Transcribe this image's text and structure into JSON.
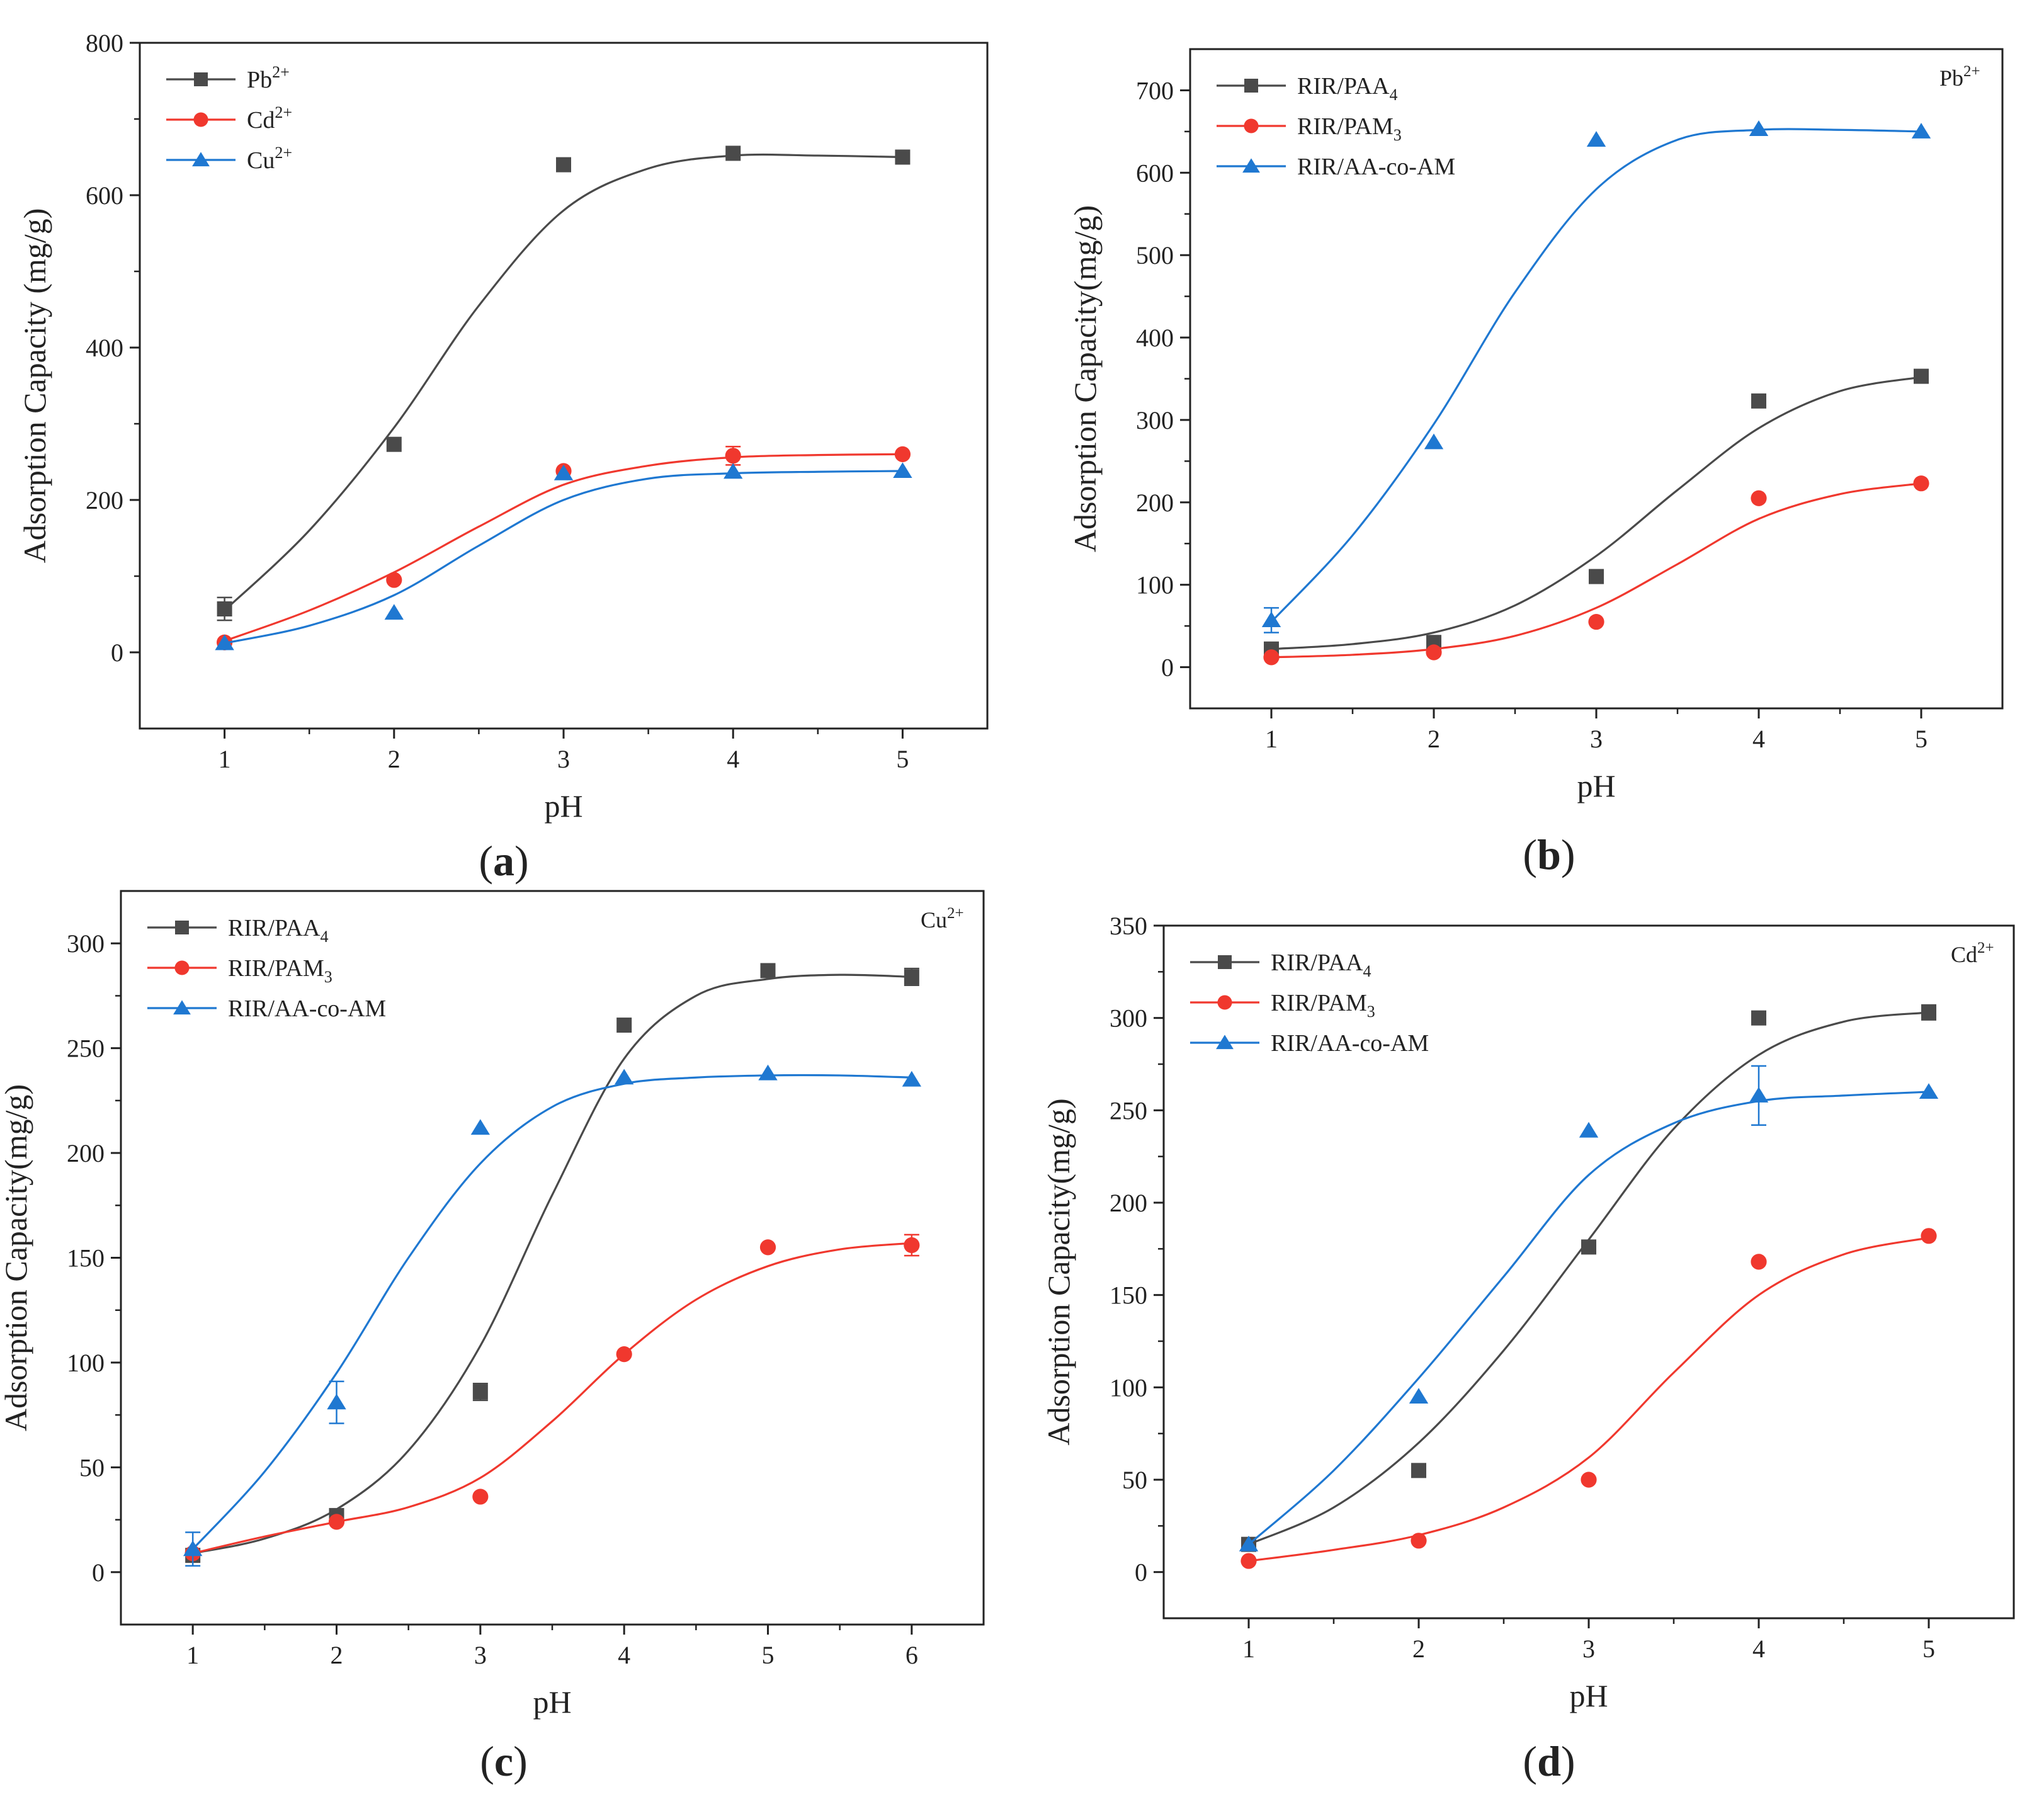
{
  "colors": {
    "black_series": "#4a4a4a",
    "red_series": "#f0382e",
    "blue_series": "#1f78d1",
    "axis": "#222222"
  },
  "chart_data": [
    {
      "id": "a",
      "type": "scatter",
      "panel_label": "a",
      "ion_label": "",
      "xlabel": "pH",
      "ylabel": "Adsorption Capacity (mg/g)",
      "xlim": [
        0.5,
        5.5
      ],
      "ylim": [
        -100,
        800
      ],
      "xticks": [
        1,
        2,
        3,
        4,
        5
      ],
      "yticks": [
        0,
        200,
        400,
        600,
        800
      ],
      "legend_position": "top-left",
      "series": [
        {
          "name": "Pb",
          "sup": "2+",
          "marker": "square",
          "color": "#4a4a4a",
          "x": [
            1,
            2,
            3,
            4,
            5
          ],
          "y": [
            57,
            273,
            640,
            655,
            650
          ],
          "errors": [
            15,
            0,
            0,
            0,
            0
          ],
          "fit_x": [
            1,
            1.5,
            2,
            2.5,
            3,
            3.5,
            4,
            4.5,
            5
          ],
          "fit_y": [
            55,
            160,
            295,
            455,
            580,
            635,
            652,
            652,
            650
          ]
        },
        {
          "name": "Cd",
          "sup": "2+",
          "marker": "circle",
          "color": "#f0382e",
          "x": [
            1,
            2,
            3,
            4,
            5
          ],
          "y": [
            13,
            95,
            238,
            258,
            260
          ],
          "errors": [
            0,
            0,
            0,
            12,
            0
          ],
          "fit_x": [
            1,
            1.5,
            2,
            2.5,
            3,
            3.5,
            4,
            4.5,
            5
          ],
          "fit_y": [
            15,
            55,
            105,
            165,
            220,
            245,
            256,
            259,
            260
          ]
        },
        {
          "name": "Cu",
          "sup": "2+",
          "marker": "triangle",
          "color": "#1f78d1",
          "x": [
            1,
            2,
            3,
            4,
            5
          ],
          "y": [
            12,
            52,
            235,
            237,
            238
          ],
          "errors": [
            0,
            0,
            0,
            0,
            0
          ],
          "fit_x": [
            1,
            1.5,
            2,
            2.5,
            3,
            3.5,
            4,
            4.5,
            5
          ],
          "fit_y": [
            12,
            35,
            75,
            140,
            200,
            228,
            235,
            237,
            238
          ]
        }
      ]
    },
    {
      "id": "b",
      "type": "scatter",
      "panel_label": "b",
      "ion_label": "Pb",
      "ion_sup": "2+",
      "xlabel": "pH",
      "ylabel": "Adsorption Capacity(mg/g)",
      "xlim": [
        0.5,
        5.5
      ],
      "ylim": [
        -50,
        750
      ],
      "xticks": [
        1,
        2,
        3,
        4,
        5
      ],
      "yticks": [
        0,
        100,
        200,
        300,
        400,
        500,
        600,
        700
      ],
      "legend_position": "top-left",
      "series": [
        {
          "name": "RIR/PAA",
          "sub": "4",
          "marker": "square",
          "color": "#4a4a4a",
          "x": [
            1,
            2,
            3,
            4,
            5
          ],
          "y": [
            22,
            30,
            110,
            323,
            353
          ],
          "errors": [
            0,
            0,
            0,
            0,
            0
          ],
          "fit_x": [
            1,
            1.5,
            2,
            2.5,
            3,
            3.5,
            4,
            4.5,
            5
          ],
          "fit_y": [
            22,
            28,
            42,
            75,
            135,
            215,
            290,
            335,
            352
          ]
        },
        {
          "name": "RIR/PAM",
          "sub": "3",
          "marker": "circle",
          "color": "#f0382e",
          "x": [
            1,
            2,
            3,
            4,
            5
          ],
          "y": [
            12,
            18,
            55,
            205,
            223
          ],
          "errors": [
            0,
            0,
            0,
            0,
            0
          ],
          "fit_x": [
            1,
            1.5,
            2,
            2.5,
            3,
            3.5,
            4,
            4.5,
            5
          ],
          "fit_y": [
            12,
            15,
            22,
            38,
            72,
            125,
            180,
            210,
            223
          ]
        },
        {
          "name": "RIR/AA-co-AM",
          "sub": "",
          "marker": "triangle",
          "color": "#1f78d1",
          "x": [
            1,
            2,
            3,
            4,
            5
          ],
          "y": [
            57,
            273,
            640,
            653,
            650
          ],
          "errors": [
            15,
            0,
            0,
            0,
            0
          ],
          "fit_x": [
            1,
            1.5,
            2,
            2.5,
            3,
            3.5,
            4,
            4.5,
            5
          ],
          "fit_y": [
            55,
            160,
            295,
            455,
            580,
            640,
            652,
            652,
            650
          ]
        }
      ]
    },
    {
      "id": "c",
      "type": "scatter",
      "panel_label": "c",
      "ion_label": "Cu",
      "ion_sup": "2+",
      "xlabel": "pH",
      "ylabel": "Adsorption Capacity(mg/g)",
      "xlim": [
        0.5,
        6.5
      ],
      "ylim": [
        -25,
        325
      ],
      "xticks": [
        1,
        2,
        3,
        4,
        5,
        6
      ],
      "yticks": [
        0,
        50,
        100,
        150,
        200,
        250,
        300
      ],
      "legend_position": "top-left",
      "series": [
        {
          "name": "RIR/PAA",
          "sub": "4",
          "marker": "square",
          "color": "#4a4a4a",
          "x": [
            1,
            2,
            3,
            4,
            5,
            6
          ],
          "y": [
            8,
            27,
            86,
            261,
            287,
            284
          ],
          "errors": [
            0,
            0,
            4,
            0,
            0,
            4
          ],
          "fit_x": [
            1,
            1.5,
            2,
            2.5,
            3,
            3.5,
            4,
            4.5,
            5,
            5.5,
            6
          ],
          "fit_y": [
            9,
            16,
            30,
            58,
            108,
            180,
            245,
            275,
            283,
            285,
            284
          ]
        },
        {
          "name": "RIR/PAM",
          "sub": "3",
          "marker": "circle",
          "color": "#f0382e",
          "x": [
            1,
            2,
            3,
            4,
            5,
            6
          ],
          "y": [
            9,
            24,
            36,
            104,
            155,
            156
          ],
          "errors": [
            0,
            0,
            0,
            0,
            0,
            5
          ],
          "fit_x": [
            1,
            1.5,
            2,
            2.5,
            3,
            3.5,
            4,
            4.5,
            5,
            5.5,
            6
          ],
          "fit_y": [
            9,
            17,
            24,
            31,
            45,
            72,
            104,
            130,
            146,
            154,
            157
          ]
        },
        {
          "name": "RIR/AA-co-AM",
          "sub": "",
          "marker": "triangle",
          "color": "#1f78d1",
          "x": [
            1,
            2,
            3,
            4,
            5,
            6
          ],
          "y": [
            11,
            81,
            212,
            236,
            238,
            235
          ],
          "errors": [
            8,
            10,
            0,
            0,
            0,
            0
          ],
          "fit_x": [
            1,
            1.5,
            2,
            2.5,
            3,
            3.5,
            4,
            4.5,
            5,
            5.5,
            6
          ],
          "fit_y": [
            11,
            48,
            95,
            150,
            195,
            222,
            233,
            236,
            237,
            237,
            236
          ]
        }
      ]
    },
    {
      "id": "d",
      "type": "scatter",
      "panel_label": "d",
      "ion_label": "Cd",
      "ion_sup": "2+",
      "xlabel": "pH",
      "ylabel": "Adsorption Capacity(mg/g)",
      "xlim": [
        0.5,
        5.5
      ],
      "ylim": [
        -25,
        350
      ],
      "xticks": [
        1,
        2,
        3,
        4,
        5
      ],
      "yticks": [
        0,
        50,
        100,
        150,
        200,
        250,
        300,
        350
      ],
      "legend_position": "top-left",
      "series": [
        {
          "name": "RIR/PAA",
          "sub": "4",
          "marker": "square",
          "color": "#4a4a4a",
          "x": [
            1,
            2,
            3,
            4,
            5
          ],
          "y": [
            15,
            55,
            176,
            300,
            303
          ],
          "errors": [
            0,
            0,
            0,
            0,
            4
          ],
          "fit_x": [
            1,
            1.5,
            2,
            2.5,
            3,
            3.5,
            4,
            4.5,
            5
          ],
          "fit_y": [
            15,
            35,
            70,
            120,
            180,
            240,
            280,
            298,
            303
          ]
        },
        {
          "name": "RIR/PAM",
          "sub": "3",
          "marker": "circle",
          "color": "#f0382e",
          "x": [
            1,
            2,
            3,
            4,
            5
          ],
          "y": [
            6,
            17,
            50,
            168,
            182
          ],
          "errors": [
            0,
            0,
            0,
            0,
            0
          ],
          "fit_x": [
            1,
            1.5,
            2,
            2.5,
            3,
            3.5,
            4,
            4.5,
            5
          ],
          "fit_y": [
            6,
            12,
            20,
            35,
            62,
            108,
            150,
            172,
            181
          ]
        },
        {
          "name": "RIR/AA-co-AM",
          "sub": "",
          "marker": "triangle",
          "color": "#1f78d1",
          "x": [
            1,
            2,
            3,
            4,
            5
          ],
          "y": [
            15,
            95,
            239,
            258,
            260
          ],
          "errors": [
            0,
            0,
            0,
            16,
            0
          ],
          "fit_x": [
            1,
            1.5,
            2,
            2.5,
            3,
            3.5,
            4,
            4.5,
            5
          ],
          "fit_y": [
            15,
            55,
            105,
            160,
            215,
            243,
            255,
            258,
            260
          ]
        }
      ]
    }
  ]
}
